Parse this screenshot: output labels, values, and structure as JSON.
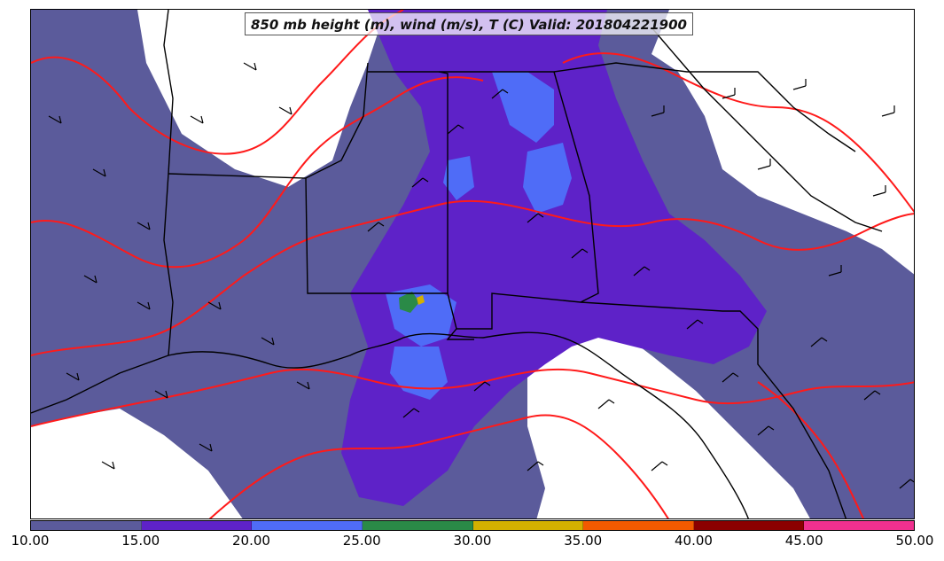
{
  "title": "850 mb height (m), wind (m/s), T (C) Valid: 201804221900",
  "colorbar": {
    "ticks": [
      "10.00",
      "15.00",
      "20.00",
      "25.00",
      "30.00",
      "35.00",
      "40.00",
      "45.00",
      "50.00"
    ],
    "colors": [
      "#5b5b9b",
      "#5e22c8",
      "#4f6cf7",
      "#2a8a47",
      "#d4b000",
      "#f25a00",
      "#8b0000",
      "#f0308f"
    ]
  },
  "map": {
    "fill_colors": {
      "low": "#5b5b9b",
      "mid": "#5e22c8",
      "high": "#4f6cf7",
      "peak": "#2a8a47",
      "spot": "#d4b000"
    },
    "contour_color": "#ff1a1a",
    "boundary_color": "#000000"
  }
}
